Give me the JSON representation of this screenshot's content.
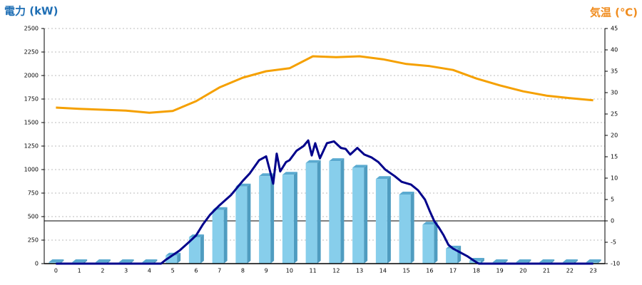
{
  "chart_data": {
    "type": "bar",
    "y_label": "電力 (kW)",
    "y2_label": "気温 (℃)",
    "categories": [
      "0",
      "1",
      "2",
      "3",
      "4",
      "5",
      "6",
      "7",
      "8",
      "9",
      "10",
      "11",
      "12",
      "13",
      "14",
      "15",
      "16",
      "17",
      "18",
      "19",
      "20",
      "21",
      "22",
      "23"
    ],
    "values": [
      15,
      15,
      15,
      15,
      15,
      85,
      280,
      570,
      820,
      930,
      945,
      1070,
      1090,
      1020,
      900,
      735,
      415,
      160,
      30,
      15,
      15,
      15,
      15,
      15
    ],
    "color": "#87ceeb",
    "series": [
      {
        "color": "#00008b",
        "x": [
          0,
          4.5,
          4.7,
          5,
          5.3,
          5.7,
          6,
          6.3,
          6.6,
          7,
          7.5,
          8,
          8.3,
          8.7,
          9,
          9.2,
          9.3,
          9.45,
          9.6,
          9.85,
          10,
          10.3,
          10.6,
          10.8,
          10.95,
          11.1,
          11.3,
          11.6,
          11.9,
          12.2,
          12.4,
          12.6,
          12.9,
          13.2,
          13.5,
          13.8,
          14.1,
          14.5,
          14.8,
          15.2,
          15.5,
          15.8,
          16,
          16.2,
          16.4,
          16.6,
          16.8,
          17,
          17.3,
          17.6,
          17.9,
          18.1,
          23
        ],
        "values": [
          0,
          0,
          40,
          90,
          140,
          230,
          300,
          420,
          520,
          620,
          730,
          880,
          960,
          1100,
          1140,
          950,
          850,
          1170,
          980,
          1080,
          1100,
          1200,
          1250,
          1310,
          1150,
          1280,
          1120,
          1280,
          1300,
          1230,
          1220,
          1160,
          1230,
          1160,
          1130,
          1080,
          1000,
          930,
          870,
          840,
          780,
          680,
          560,
          450,
          380,
          300,
          200,
          160,
          120,
          80,
          30,
          0,
          0
        ]
      },
      {
        "color": "#f5a000",
        "axis": "y2",
        "values": [
          26.5,
          26.2,
          26,
          25.8,
          25.3,
          25.7,
          28,
          31.2,
          33.5,
          35,
          35.7,
          38.5,
          38.3,
          38.5,
          37.8,
          36.7,
          36.2,
          35.3,
          33.3,
          31.7,
          30.3,
          29.3,
          28.7,
          28.2
        ]
      }
    ],
    "ylim": [
      0,
      2500
    ],
    "yticks": [
      0,
      250,
      500,
      750,
      1000,
      1250,
      1500,
      1750,
      2000,
      2250,
      2500
    ],
    "y2lim": [
      -10,
      45
    ],
    "y2ticks": [
      -10,
      -5,
      0,
      5,
      10,
      15,
      20,
      25,
      30,
      35,
      40,
      45
    ],
    "grid": true
  }
}
